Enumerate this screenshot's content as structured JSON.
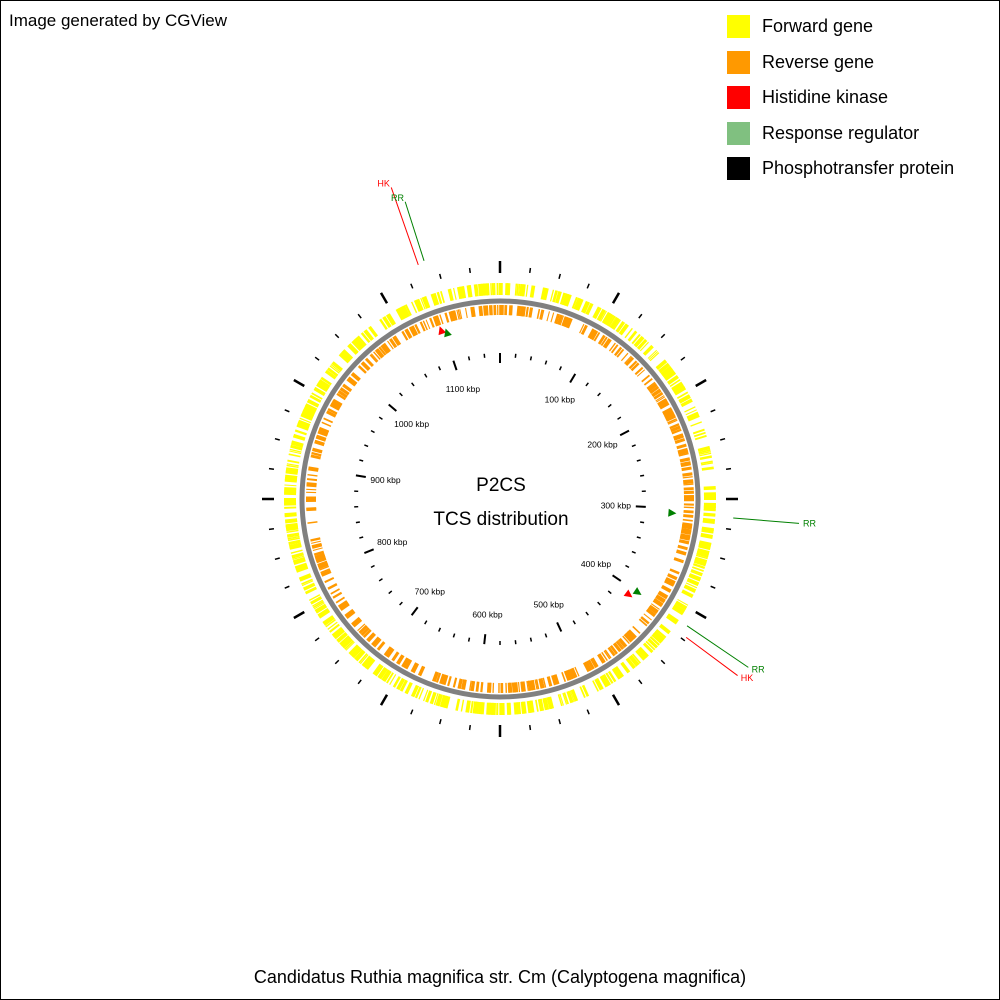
{
  "credit": "Image generated by CGView",
  "legend": [
    {
      "label": "Forward gene",
      "color": "#ffff00"
    },
    {
      "label": "Reverse gene",
      "color": "#ff9900"
    },
    {
      "label": "Histidine kinase",
      "color": "#ff0000"
    },
    {
      "label": "Response regulator",
      "color": "#80c080"
    },
    {
      "label": "Phosphotransfer protein",
      "color": "#000000"
    }
  ],
  "center": {
    "line1": "P2CS",
    "line2": "TCS distribution"
  },
  "genome_title": "Candidatus Ruthia magnifica str. Cm (Calyptogena magnifica)",
  "map": {
    "genome_length_kbp": 1160,
    "backbone_color": "#808080",
    "tick_labels": [
      {
        "kbp": 100,
        "text": "100 kbp"
      },
      {
        "kbp": 200,
        "text": "200 kbp"
      },
      {
        "kbp": 300,
        "text": "300 kbp"
      },
      {
        "kbp": 400,
        "text": "400 kbp"
      },
      {
        "kbp": 500,
        "text": "500 kbp"
      },
      {
        "kbp": 600,
        "text": "600 kbp"
      },
      {
        "kbp": 700,
        "text": "700 kbp"
      },
      {
        "kbp": 800,
        "text": "800 kbp"
      },
      {
        "kbp": 900,
        "text": "900 kbp"
      },
      {
        "kbp": 1000,
        "text": "1000 kbp"
      },
      {
        "kbp": 1100,
        "text": "1100 kbp"
      }
    ],
    "tcs_features": [
      {
        "kbp": 1098,
        "type": "HK",
        "label": "HK",
        "color": "#ff0000",
        "label_color": "#ff0000"
      },
      {
        "kbp": 1103,
        "type": "RR",
        "label": "RR",
        "color": "#008000",
        "label_color": "#008000"
      },
      {
        "kbp": 305,
        "type": "RR",
        "label": "RR",
        "color": "#008000",
        "label_color": "#008000"
      },
      {
        "kbp": 408,
        "type": "HK",
        "label": "HK",
        "color": "#ff0000",
        "label_color": "#ff0000"
      },
      {
        "kbp": 400,
        "type": "RR",
        "label": "RR",
        "color": "#008000",
        "label_color": "#008000"
      }
    ]
  }
}
